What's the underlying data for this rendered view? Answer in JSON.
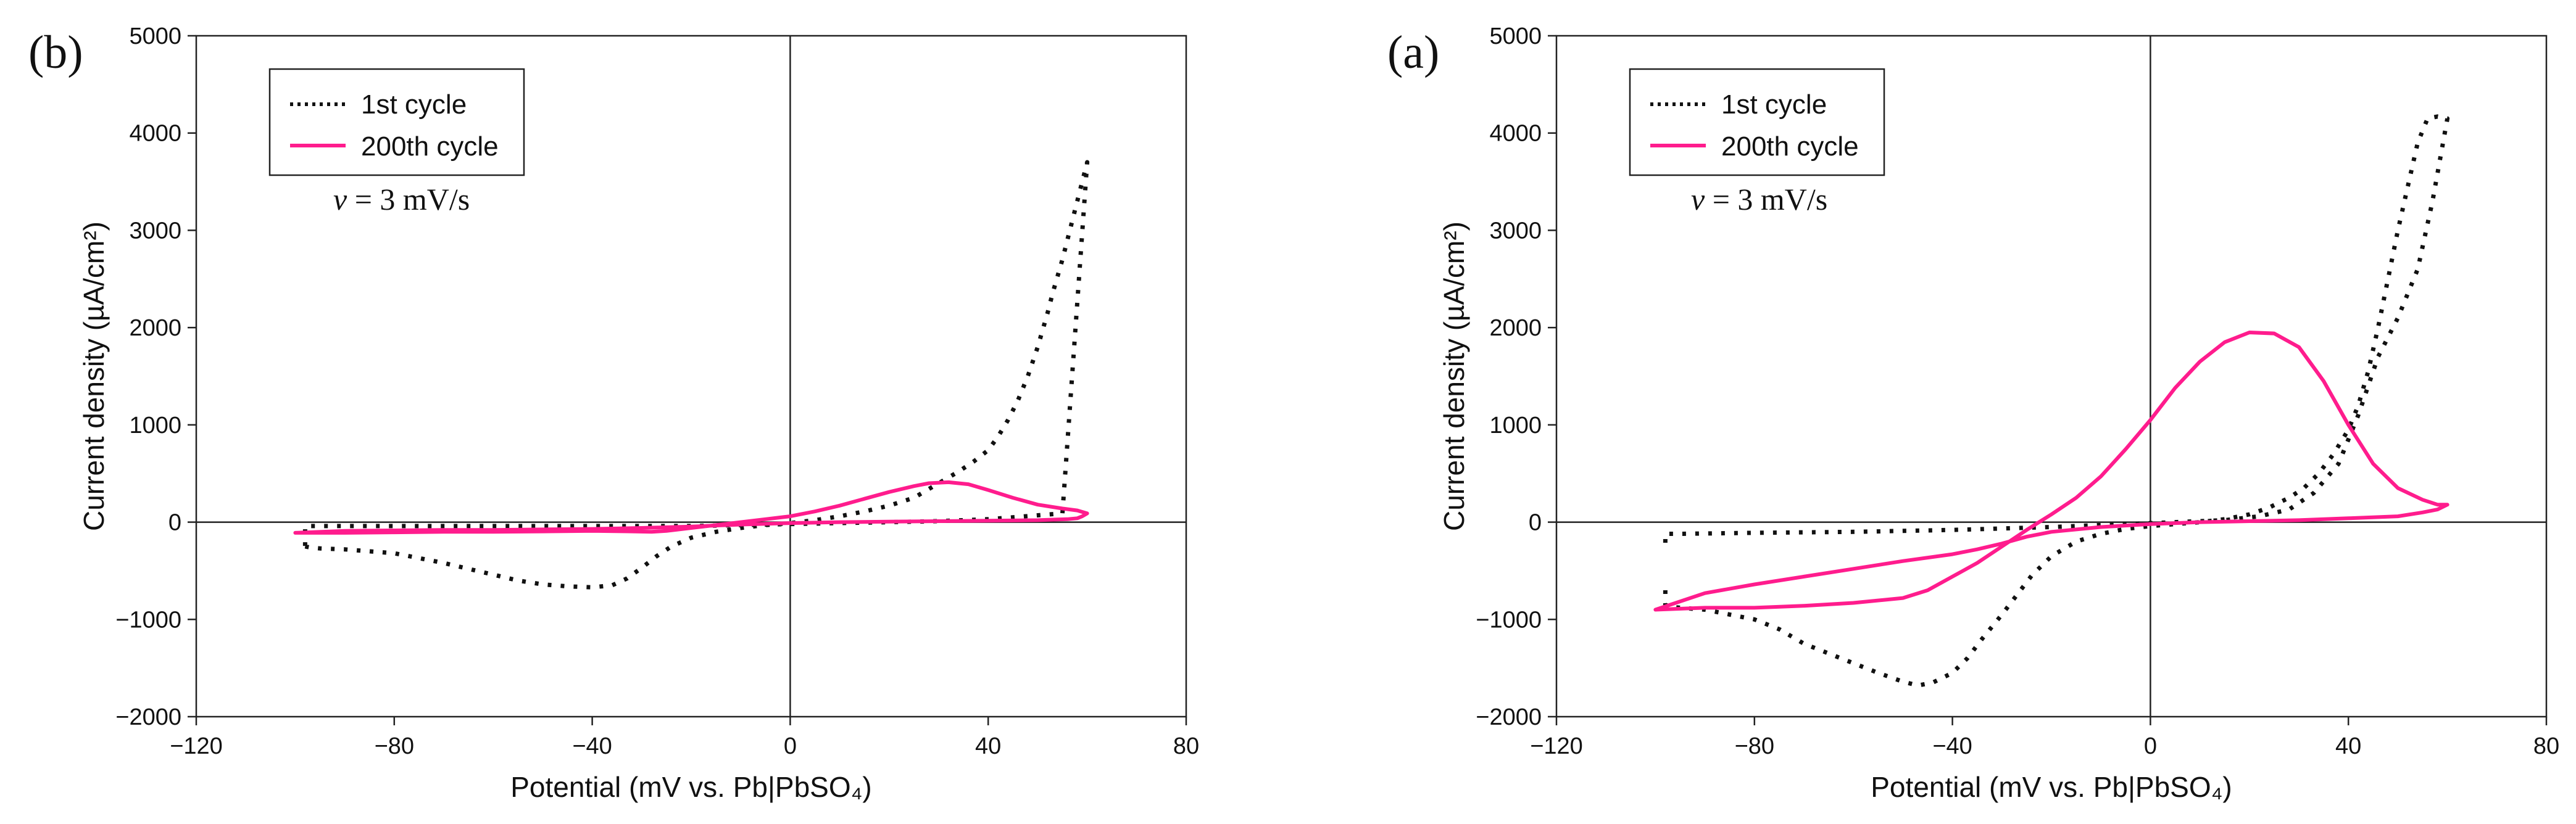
{
  "colors": {
    "first_cycle": "#111111",
    "cycle_200": "#ff1c8d",
    "axis": "#222222"
  },
  "chart_data": [
    {
      "type": "line",
      "panel": "(b)",
      "xlabel": "Potential (mV vs. Pb|PbSO₄)",
      "ylabel": "Current density (µA/cm²)",
      "xlim": [
        -120,
        80
      ],
      "ylim": [
        -2000,
        5000
      ],
      "xticks": [
        -120,
        -80,
        -40,
        0,
        40,
        80
      ],
      "xtick_labels": [
        "−120",
        "−80",
        "−40",
        "0",
        "40",
        "80"
      ],
      "yticks": [
        -2000,
        -1000,
        0,
        1000,
        2000,
        3000,
        4000,
        5000
      ],
      "ytick_labels": [
        "−2000",
        "−1000",
        "0",
        "1000",
        "2000",
        "3000",
        "4000",
        "5000"
      ],
      "grid": false,
      "annotation": {
        "prefix": "v",
        "text": " = 3 mV/s"
      },
      "legend": [
        "1st cycle",
        "200th cycle"
      ],
      "series": [
        {
          "name": "1st cycle",
          "style": "dotted",
          "x": [
            -98,
            -97,
            -95,
            -90,
            -85,
            -80,
            -75,
            -70,
            -65,
            -60,
            -55,
            -50,
            -45,
            -40,
            -36,
            -33,
            -30,
            -27,
            -24,
            -20,
            -15,
            -10,
            -5,
            0,
            5,
            10,
            15,
            20,
            25,
            28,
            31,
            34,
            37,
            40,
            42,
            44,
            46,
            48,
            50,
            52,
            53,
            55,
            57,
            59,
            60,
            55,
            50,
            45,
            40,
            30,
            20,
            10,
            0,
            -10,
            -20,
            -30,
            -40,
            -50,
            -60,
            -70,
            -80,
            -90,
            -97,
            -98,
            -98,
            -98
          ],
          "y": [
            -250,
            -260,
            -270,
            -280,
            -300,
            -320,
            -370,
            -420,
            -480,
            -540,
            -600,
            -640,
            -660,
            -670,
            -650,
            -580,
            -470,
            -350,
            -250,
            -160,
            -100,
            -60,
            -30,
            -10,
            20,
            60,
            110,
            170,
            250,
            340,
            430,
            520,
            620,
            740,
            880,
            1050,
            1250,
            1500,
            1800,
            2150,
            2350,
            2700,
            3100,
            3500,
            3700,
            90,
            70,
            50,
            30,
            10,
            0,
            -10,
            -20,
            -30,
            -40,
            -40,
            -40,
            -40,
            -40,
            -40,
            -40,
            -40,
            -40,
            -40,
            -150,
            -250
          ]
        },
        {
          "name": "200th cycle",
          "style": "solid",
          "x": [
            -100,
            -90,
            -80,
            -70,
            -60,
            -50,
            -40,
            -32,
            -28,
            -25,
            -20,
            -15,
            -10,
            -5,
            0,
            5,
            10,
            15,
            20,
            25,
            28,
            32,
            36,
            40,
            45,
            50,
            55,
            58,
            60,
            59,
            58,
            56,
            50,
            40,
            30,
            20,
            10,
            0,
            -10,
            -20,
            -30,
            -40,
            -50,
            -60,
            -70,
            -80,
            -90,
            -100
          ],
          "y": [
            -110,
            -110,
            -105,
            -100,
            -100,
            -95,
            -90,
            -95,
            -100,
            -90,
            -60,
            -30,
            0,
            30,
            60,
            110,
            170,
            240,
            310,
            370,
            400,
            410,
            390,
            330,
            250,
            180,
            140,
            120,
            90,
            60,
            40,
            30,
            20,
            15,
            10,
            5,
            0,
            -10,
            -25,
            -45,
            -60,
            -70,
            -75,
            -80,
            -80,
            -85,
            -90,
            -110
          ]
        }
      ]
    },
    {
      "type": "line",
      "panel": "(a)",
      "xlabel": "Potential (mV vs. Pb|PbSO₄)",
      "ylabel": "Current density (µA/cm²)",
      "xlim": [
        -120,
        80
      ],
      "ylim": [
        -2000,
        5000
      ],
      "xticks": [
        -120,
        -80,
        -40,
        0,
        40,
        80
      ],
      "xtick_labels": [
        "−120",
        "−80",
        "−40",
        "0",
        "40",
        "80"
      ],
      "yticks": [
        -2000,
        -1000,
        0,
        1000,
        2000,
        3000,
        4000,
        5000
      ],
      "ytick_labels": [
        "−2000",
        "−1000",
        "0",
        "1000",
        "2000",
        "3000",
        "4000",
        "5000"
      ],
      "grid": false,
      "annotation": {
        "prefix": "v",
        "text": " = 3 mV/s"
      },
      "legend": [
        "1st cycle",
        "200th cycle"
      ],
      "series": [
        {
          "name": "1st cycle",
          "style": "dotted",
          "x": [
            -98,
            -98,
            -98,
            -97,
            -95,
            -90,
            -85,
            -80,
            -75,
            -70,
            -65,
            -60,
            -55,
            -50,
            -47,
            -44,
            -40,
            -37,
            -34,
            -30,
            -27,
            -24,
            -20,
            -15,
            -10,
            -5,
            0,
            5,
            10,
            15,
            20,
            24,
            28,
            31,
            34,
            37,
            40,
            42,
            44,
            46,
            48,
            50,
            52,
            54,
            56,
            58,
            60,
            57,
            54,
            50,
            46,
            42,
            38,
            33,
            28,
            22,
            15,
            5,
            -5,
            -20,
            -40,
            -60,
            -80,
            -95,
            -98,
            -98
          ],
          "y": [
            -700,
            -800,
            -850,
            -870,
            -880,
            -900,
            -950,
            -1000,
            -1100,
            -1250,
            -1350,
            -1450,
            -1550,
            -1640,
            -1680,
            -1650,
            -1550,
            -1400,
            -1200,
            -950,
            -750,
            -550,
            -350,
            -200,
            -120,
            -70,
            -40,
            -20,
            0,
            30,
            80,
            150,
            250,
            350,
            500,
            700,
            950,
            1200,
            1550,
            2000,
            2500,
            3000,
            3450,
            3900,
            4150,
            4170,
            4150,
            3300,
            2600,
            2100,
            1700,
            1100,
            600,
            300,
            130,
            60,
            20,
            0,
            -20,
            -50,
            -80,
            -100,
            -110,
            -120,
            -120,
            -300
          ]
        },
        {
          "name": "200th cycle",
          "style": "solid",
          "x": [
            -100,
            -90,
            -80,
            -70,
            -60,
            -50,
            -45,
            -40,
            -35,
            -30,
            -25,
            -20,
            -15,
            -10,
            -5,
            0,
            5,
            10,
            15,
            20,
            25,
            30,
            35,
            40,
            45,
            50,
            55,
            58,
            60,
            58,
            55,
            50,
            40,
            30,
            20,
            10,
            0,
            -10,
            -20,
            -25,
            -30,
            -35,
            -40,
            -50,
            -60,
            -70,
            -80,
            -90,
            -100
          ],
          "y": [
            -900,
            -880,
            -880,
            -860,
            -830,
            -780,
            -700,
            -560,
            -420,
            -250,
            -80,
            80,
            250,
            470,
            750,
            1050,
            1380,
            1650,
            1850,
            1950,
            1940,
            1800,
            1450,
            1000,
            600,
            350,
            230,
            180,
            180,
            130,
            100,
            60,
            40,
            20,
            10,
            0,
            -20,
            -50,
            -100,
            -150,
            -220,
            -280,
            -330,
            -400,
            -480,
            -560,
            -640,
            -730,
            -900
          ]
        }
      ]
    }
  ]
}
